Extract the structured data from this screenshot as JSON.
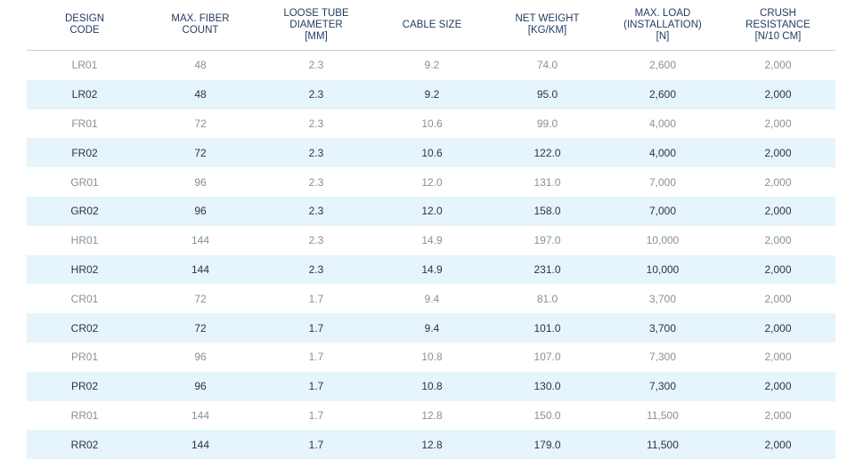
{
  "headers": [
    "DESIGN\nCODE",
    "MAX. FIBER\nCOUNT",
    "LOOSE TUBE\nDIAMETER\n[MM]",
    "CABLE SIZE",
    "NET WEIGHT\n[KG/KM]",
    "MAX. LOAD\n(INSTALLATION)\n[N]",
    "CRUSH\nRESISTANCE\n[N/10 CM]"
  ],
  "rows": [
    [
      "LR01",
      "48",
      "2.3",
      "9.2",
      "74.0",
      "2,600",
      "2,000"
    ],
    [
      "LR02",
      "48",
      "2.3",
      "9.2",
      "95.0",
      "2,600",
      "2,000"
    ],
    [
      "FR01",
      "72",
      "2.3",
      "10.6",
      "99.0",
      "4,000",
      "2,000"
    ],
    [
      "FR02",
      "72",
      "2.3",
      "10.6",
      "122.0",
      "4,000",
      "2,000"
    ],
    [
      "GR01",
      "96",
      "2.3",
      "12.0",
      "131.0",
      "7,000",
      "2,000"
    ],
    [
      "GR02",
      "96",
      "2.3",
      "12.0",
      "158.0",
      "7,000",
      "2,000"
    ],
    [
      "HR01",
      "144",
      "2.3",
      "14.9",
      "197.0",
      "10,000",
      "2,000"
    ],
    [
      "HR02",
      "144",
      "2.3",
      "14.9",
      "231.0",
      "10,000",
      "2,000"
    ],
    [
      "CR01",
      "72",
      "1.7",
      "9.4",
      "81.0",
      "3,700",
      "2,000"
    ],
    [
      "CR02",
      "72",
      "1.7",
      "9.4",
      "101.0",
      "3,700",
      "2,000"
    ],
    [
      "PR01",
      "96",
      "1.7",
      "10.8",
      "107.0",
      "7,300",
      "2,000"
    ],
    [
      "PR02",
      "96",
      "1.7",
      "10.8",
      "130.0",
      "7,300",
      "2,000"
    ],
    [
      "RR01",
      "144",
      "1.7",
      "12.8",
      "150.0",
      "11,500",
      "2,000"
    ],
    [
      "RR02",
      "144",
      "1.7",
      "12.8",
      "179.0",
      "11,500",
      "2,000"
    ]
  ],
  "colors": {
    "header_text": "#1f3a5f",
    "row_text": "#8a8f96",
    "alt_row_bg": "#e6f4fb",
    "alt_row_text": "#2d3540"
  }
}
